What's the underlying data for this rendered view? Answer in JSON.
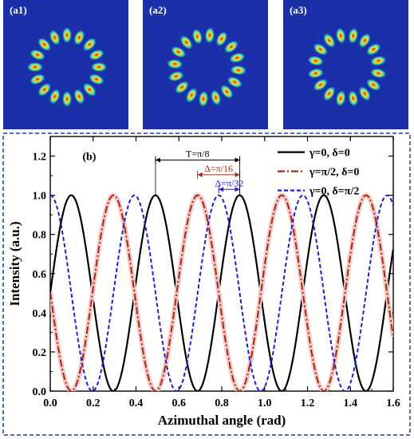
{
  "panels": [
    {
      "label": "(a1)",
      "lobes": 16,
      "phase": 0
    },
    {
      "label": "(a2)",
      "lobes": 16,
      "phase": 0.0982
    },
    {
      "label": "(a3)",
      "lobes": 16,
      "phase": 0.1963
    }
  ],
  "chart_data": {
    "type": "line",
    "panel_label": "(b)",
    "xlabel": "Azimuthal angle (rad)",
    "ylabel": "Intensity (a.u.)",
    "xlim": [
      0.0,
      1.6
    ],
    "ylim": [
      0.0,
      1.3
    ],
    "x_ticks": [
      "0.0",
      "0.2",
      "0.4",
      "0.6",
      "0.8",
      "1.0",
      "1.2",
      "1.4",
      "1.6"
    ],
    "y_ticks": [
      "0.0",
      "0.2",
      "0.4",
      "0.6",
      "0.8",
      "1.0",
      "1.2"
    ],
    "period": 0.3927,
    "series": [
      {
        "name": "γ=0, δ=0",
        "color": "#000000",
        "dash": "solid",
        "peak_x": 0.098,
        "values_min": 0.0,
        "values_max": 1.0
      },
      {
        "name": "γ=π/2, δ=0",
        "color": "#a52a10",
        "dash": "dashdot",
        "peak_x": 0.295,
        "values_min": 0.0,
        "values_max": 1.0
      },
      {
        "name": "γ=0, δ=π/2",
        "color": "#1f1fd6",
        "dash": "dash",
        "peak_x": 0.393,
        "values_min": 0.0,
        "values_max": 1.0
      }
    ],
    "annotations": [
      {
        "text": "T=π/8",
        "x1": 0.491,
        "x2": 0.884,
        "y": 1.18,
        "color": "#000000"
      },
      {
        "text": "Δ=π/16",
        "x1": 0.687,
        "x2": 0.884,
        "y": 1.105,
        "color": "#a52a10"
      },
      {
        "text": "Δ=π/32",
        "x1": 0.786,
        "x2": 0.884,
        "y": 1.03,
        "color": "#1f1fd6"
      }
    ]
  }
}
